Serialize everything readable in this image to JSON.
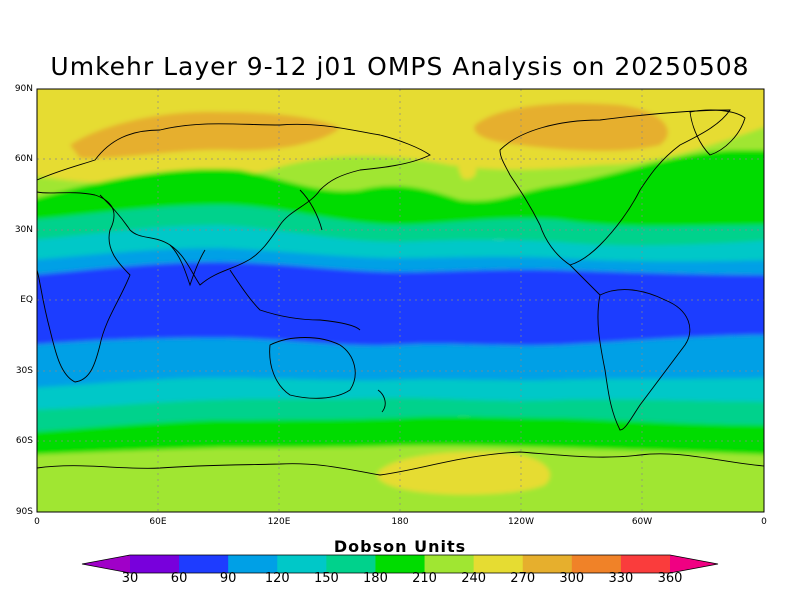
{
  "title": "Umkehr Layer 9-12 j01 OMPS Analysis on 20250508",
  "lat_labels": [
    "90N",
    "60N",
    "30N",
    "EQ",
    "30S",
    "60S",
    "90S"
  ],
  "lon_labels": [
    "0",
    "60E",
    "120E",
    "180",
    "120W",
    "60W",
    "0"
  ],
  "colorbar": {
    "title": "Dobson Units",
    "ticks": [
      "30",
      "60",
      "90",
      "120",
      "150",
      "180",
      "210",
      "240",
      "270",
      "300",
      "330",
      "360"
    ],
    "colors": [
      "#a000c8",
      "#7800dc",
      "#1e3cff",
      "#00a0e6",
      "#00c8c8",
      "#00d28c",
      "#00dc00",
      "#a0e632",
      "#e6dc32",
      "#e6af2d",
      "#f08228",
      "#fa3c3c",
      "#f00082"
    ]
  },
  "chart_data": {
    "type": "heatmap",
    "title": "Umkehr Layer 9-12 j01 OMPS Analysis on 20250508",
    "units": "Dobson Units",
    "x_range": [
      "0",
      "0"
    ],
    "y_range": [
      "90S",
      "90N"
    ],
    "contour_levels": [
      30,
      60,
      90,
      120,
      150,
      180,
      210,
      240,
      270,
      300,
      330,
      360
    ],
    "zonal_pattern_latitudes": [
      90,
      75,
      62,
      50,
      40,
      30,
      20,
      10,
      0,
      -10,
      -20,
      -30,
      -40,
      -50,
      -60,
      -70,
      -80,
      -90
    ],
    "zonal_pattern_values": [
      255,
      285,
      255,
      225,
      195,
      165,
      135,
      105,
      75,
      75,
      105,
      135,
      165,
      195,
      225,
      245,
      260,
      250
    ],
    "grid": true
  }
}
